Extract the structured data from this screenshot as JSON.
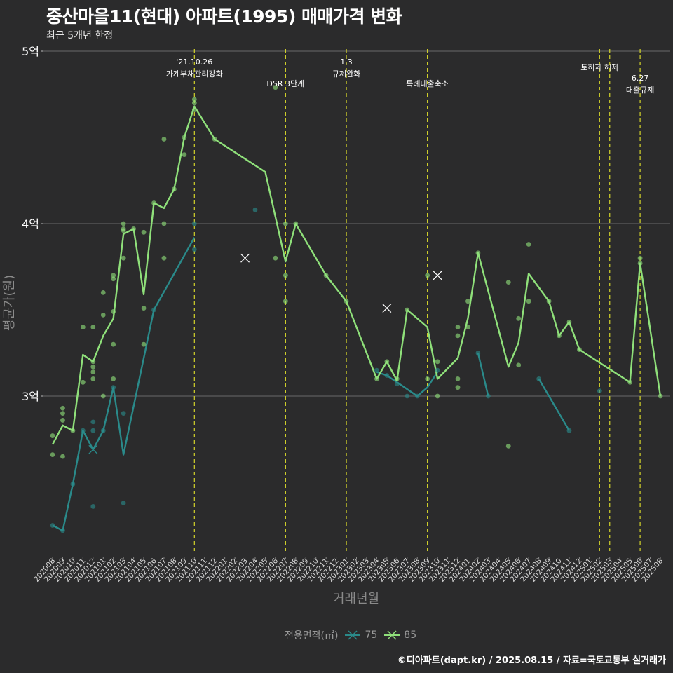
{
  "title": "중산마을11(현대) 아파트(1995) 매매가격 변화",
  "subtitle": "최근 5개년 한정",
  "caption": "©디아파트(dapt.kr) / 2025.08.15 / 자료=국토교통부 실거래가",
  "colors": {
    "background": "#2b2b2c",
    "s75": "#2a8a8a",
    "s85": "#8fe07a",
    "event_line": "#d6d62a"
  },
  "chart_data": {
    "type": "line",
    "xlabel": "거래년월",
    "ylabel": "평균가(원)",
    "legend_title": "전용면적(㎡)",
    "legend_position": "bottom",
    "grid": true,
    "ylim": [
      2.1,
      5.0
    ],
    "yticks": [
      {
        "value": 3,
        "label": "3억"
      },
      {
        "value": 4,
        "label": "4억"
      },
      {
        "value": 5,
        "label": "5억"
      }
    ],
    "x": [
      "202008",
      "202009",
      "202010",
      "202011",
      "202012",
      "202101",
      "202102",
      "202103",
      "202104",
      "202105",
      "202106",
      "202107",
      "202108",
      "202109",
      "202110",
      "202111",
      "202112",
      "202201",
      "202202",
      "202203",
      "202204",
      "202205",
      "202206",
      "202207",
      "202208",
      "202209",
      "202210",
      "202211",
      "202212",
      "202301",
      "202302",
      "202303",
      "202304",
      "202305",
      "202306",
      "202307",
      "202308",
      "202309",
      "202310",
      "202311",
      "202312",
      "202401",
      "202402",
      "202403",
      "202404",
      "202405",
      "202406",
      "202407",
      "202408",
      "202409",
      "202410",
      "202411",
      "202412",
      "202501",
      "202502",
      "202503",
      "202504",
      "202505",
      "202506",
      "202507",
      "202508"
    ],
    "series": [
      {
        "name": "75",
        "lines": [
          [
            [
              "202008",
              2.25
            ],
            [
              "202009",
              2.22
            ],
            [
              "202010",
              2.49
            ],
            [
              "202011",
              2.8
            ],
            [
              "202012",
              2.69
            ],
            [
              "202101",
              2.8
            ],
            [
              "202102",
              3.05
            ],
            [
              "202103",
              2.66
            ],
            [
              "202106",
              3.5
            ],
            [
              "202110",
              3.92
            ]
          ],
          [
            [
              "202304",
              3.14
            ],
            [
              "202305",
              3.12
            ],
            [
              "202306",
              3.08
            ],
            [
              "202308",
              3.0
            ],
            [
              "202309",
              3.05
            ],
            [
              "202310",
              3.14
            ]
          ],
          [
            [
              "202402",
              3.25
            ],
            [
              "202403",
              3.0
            ]
          ],
          [
            [
              "202408",
              3.1
            ],
            [
              "202411",
              2.8
            ]
          ]
        ],
        "points": [
          [
            "202008",
            2.25
          ],
          [
            "202009",
            2.22
          ],
          [
            "202010",
            2.49
          ],
          [
            "202011",
            2.8
          ],
          [
            "202012",
            2.36
          ],
          [
            "202012",
            2.8
          ],
          [
            "202012",
            2.85
          ],
          [
            "202101",
            2.8
          ],
          [
            "202102",
            3.05
          ],
          [
            "202103",
            2.9
          ],
          [
            "202103",
            2.38
          ],
          [
            "202106",
            3.5
          ],
          [
            "202110",
            4.0
          ],
          [
            "202110",
            3.85
          ],
          [
            "202204",
            4.08
          ],
          [
            "202304",
            3.15
          ],
          [
            "202305",
            3.12
          ],
          [
            "202306",
            3.07
          ],
          [
            "202307",
            3.0
          ],
          [
            "202308",
            3.0
          ],
          [
            "202310",
            3.15
          ],
          [
            "202402",
            3.25
          ],
          [
            "202403",
            3.0
          ],
          [
            "202408",
            3.1
          ],
          [
            "202411",
            2.8
          ],
          [
            "202502",
            3.03
          ]
        ],
        "cross_markers": [
          [
            "202012",
            2.69
          ]
        ]
      },
      {
        "name": "85",
        "lines": [
          [
            [
              "202008",
              2.72
            ],
            [
              "202009",
              2.83
            ],
            [
              "202010",
              2.8
            ],
            [
              "202011",
              3.24
            ],
            [
              "202012",
              3.2
            ],
            [
              "202101",
              3.35
            ],
            [
              "202102",
              3.45
            ],
            [
              "202103",
              3.94
            ],
            [
              "202104",
              3.97
            ],
            [
              "202105",
              3.59
            ],
            [
              "202106",
              4.12
            ],
            [
              "202107",
              4.09
            ],
            [
              "202108",
              4.2
            ],
            [
              "202109",
              4.5
            ],
            [
              "202110",
              4.68
            ],
            [
              "202112",
              4.49
            ],
            [
              "202205",
              4.3
            ],
            [
              "202207",
              3.78
            ],
            [
              "202208",
              4.0
            ],
            [
              "202211",
              3.7
            ],
            [
              "202301",
              3.55
            ],
            [
              "202304",
              3.1
            ],
            [
              "202305",
              3.2
            ],
            [
              "202306",
              3.09
            ],
            [
              "202307",
              3.5
            ],
            [
              "202309",
              3.4
            ],
            [
              "202310",
              3.1
            ],
            [
              "202312",
              3.22
            ],
            [
              "202401",
              3.45
            ],
            [
              "202402",
              3.83
            ],
            [
              "202405",
              3.17
            ],
            [
              "202406",
              3.31
            ],
            [
              "202407",
              3.71
            ],
            [
              "202409",
              3.55
            ],
            [
              "202410",
              3.35
            ],
            [
              "202411",
              3.43
            ],
            [
              "202412",
              3.27
            ],
            [
              "202505",
              3.08
            ],
            [
              "202506",
              3.77
            ],
            [
              "202508",
              3.0
            ]
          ]
        ],
        "points": [
          [
            "202008",
            2.77
          ],
          [
            "202008",
            2.66
          ],
          [
            "202009",
            2.93
          ],
          [
            "202009",
            2.9
          ],
          [
            "202009",
            2.65
          ],
          [
            "202009",
            2.86
          ],
          [
            "202010",
            2.8
          ],
          [
            "202011",
            3.4
          ],
          [
            "202011",
            3.08
          ],
          [
            "202012",
            3.4
          ],
          [
            "202012",
            3.2
          ],
          [
            "202012",
            3.17
          ],
          [
            "202012",
            3.14
          ],
          [
            "202012",
            3.1
          ],
          [
            "202101",
            3.6
          ],
          [
            "202101",
            3.47
          ],
          [
            "202101",
            3.0
          ],
          [
            "202102",
            3.7
          ],
          [
            "202102",
            3.68
          ],
          [
            "202102",
            3.49
          ],
          [
            "202102",
            3.3
          ],
          [
            "202102",
            3.1
          ],
          [
            "202103",
            4.0
          ],
          [
            "202103",
            3.97
          ],
          [
            "202103",
            3.96
          ],
          [
            "202103",
            3.8
          ],
          [
            "202104",
            3.97
          ],
          [
            "202105",
            3.95
          ],
          [
            "202105",
            3.51
          ],
          [
            "202105",
            3.3
          ],
          [
            "202106",
            4.12
          ],
          [
            "202107",
            4.49
          ],
          [
            "202107",
            4.0
          ],
          [
            "202107",
            3.8
          ],
          [
            "202108",
            4.2
          ],
          [
            "202109",
            4.5
          ],
          [
            "202109",
            4.4
          ],
          [
            "202110",
            4.72
          ],
          [
            "202110",
            4.7
          ],
          [
            "202110",
            4.66
          ],
          [
            "202112",
            4.49
          ],
          [
            "202206",
            4.79
          ],
          [
            "202206",
            3.8
          ],
          [
            "202207",
            4.0
          ],
          [
            "202207",
            3.7
          ],
          [
            "202207",
            3.55
          ],
          [
            "202208",
            4.0
          ],
          [
            "202211",
            3.7
          ],
          [
            "202301",
            3.55
          ],
          [
            "202304",
            3.1
          ],
          [
            "202305",
            3.2
          ],
          [
            "202306",
            3.1
          ],
          [
            "202307",
            3.5
          ],
          [
            "202309",
            3.7
          ],
          [
            "202309",
            3.1
          ],
          [
            "202310",
            3.2
          ],
          [
            "202310",
            3.0
          ],
          [
            "202312",
            3.4
          ],
          [
            "202312",
            3.35
          ],
          [
            "202312",
            3.1
          ],
          [
            "202312",
            3.05
          ],
          [
            "202401",
            3.55
          ],
          [
            "202401",
            3.4
          ],
          [
            "202402",
            3.83
          ],
          [
            "202405",
            3.66
          ],
          [
            "202405",
            2.71
          ],
          [
            "202406",
            3.45
          ],
          [
            "202406",
            3.18
          ],
          [
            "202407",
            3.88
          ],
          [
            "202407",
            3.55
          ],
          [
            "202409",
            3.55
          ],
          [
            "202410",
            3.35
          ],
          [
            "202411",
            3.43
          ],
          [
            "202412",
            3.27
          ],
          [
            "202505",
            3.08
          ],
          [
            "202506",
            3.8
          ],
          [
            "202506",
            3.77
          ],
          [
            "202508",
            3.0
          ]
        ],
        "cross_markers": [
          [
            "202203",
            3.8
          ],
          [
            "202305",
            3.51
          ],
          [
            "202310",
            3.7
          ]
        ]
      }
    ],
    "annotations": [
      {
        "x": "202110",
        "lines": [
          "'21.10.26",
          "가계부채관리강화"
        ],
        "row": 0
      },
      {
        "x": "202207",
        "lines": [
          "DSR 3단계"
        ],
        "row": 1
      },
      {
        "x": "202301",
        "lines": [
          "1.3",
          "규제완화"
        ],
        "row": 0
      },
      {
        "x": "202309",
        "lines": [
          "특례대출축소"
        ],
        "row": 1
      },
      {
        "x": "202502",
        "lines": [
          "토허제 해제"
        ],
        "row": 2
      },
      {
        "x": "202503",
        "lines": [],
        "row": 2
      },
      {
        "x": "202506",
        "lines": [
          "6.27",
          "대출규제"
        ],
        "row": 3
      }
    ]
  }
}
